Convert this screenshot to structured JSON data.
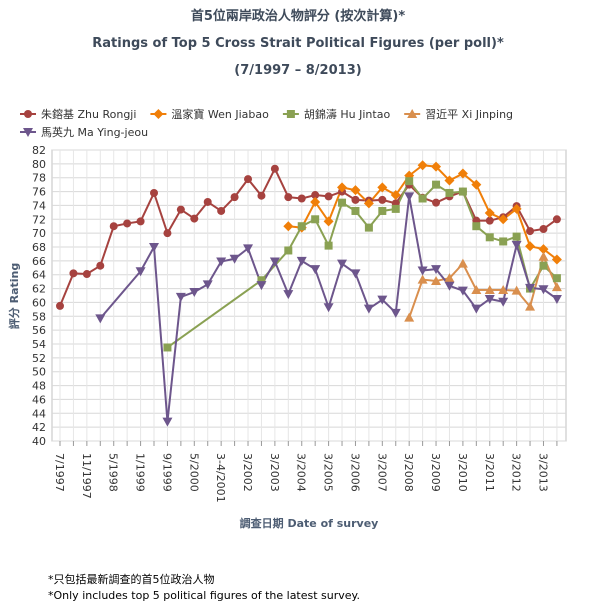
{
  "chart_data": {
    "type": "line",
    "title": "首5位兩岸政治人物評分 (按次計算)*",
    "subtitle": "Ratings of Top 5 Cross Strait Political Figures (per poll)*",
    "period": "(7/1997 – 8/2013)",
    "x_label": "調查日期 Date of survey",
    "y_label": "評分 Rating",
    "footnotes": [
      "*只包括最新調查的首5位政治人物",
      "*Only includes top 5 political figures of the latest survey."
    ],
    "categories": [
      "7/1997",
      null,
      "11/1997",
      null,
      "5/1998",
      null,
      "1/1999",
      null,
      "9/1999",
      null,
      "5/2000",
      null,
      "3-4/2001",
      null,
      "3/2002",
      null,
      "3/2003",
      null,
      "3/2004",
      null,
      "3/2005",
      null,
      "3/2006",
      null,
      "3/2007",
      null,
      "3/2008",
      null,
      "3/2009",
      null,
      "3/2010",
      null,
      "3/2011",
      null,
      "3/2012",
      null,
      "3/2013",
      null
    ],
    "ylim": [
      40,
      82
    ],
    "yticks": [
      40,
      42,
      44,
      46,
      48,
      50,
      52,
      54,
      56,
      58,
      60,
      62,
      64,
      66,
      68,
      70,
      72,
      74,
      76,
      78,
      80,
      82
    ],
    "grid": true,
    "connect_nulls": true,
    "series": [
      {
        "name": "朱鎔基 Zhu Rongji",
        "color": "#a6423f",
        "marker": "circle",
        "values": [
          59.5,
          64.2,
          64.1,
          65.3,
          71.0,
          71.4,
          71.7,
          75.8,
          70.0,
          73.4,
          72.1,
          74.5,
          73.2,
          75.2,
          77.8,
          75.4,
          79.3,
          75.2,
          75.0,
          75.5,
          75.3,
          76.0,
          74.8,
          74.7,
          74.8,
          74.3,
          77.0,
          75.1,
          74.4,
          75.3,
          76.0,
          71.8,
          71.8,
          72.3,
          73.9,
          70.3,
          70.6,
          72.0
        ]
      },
      {
        "name": "溫家寶 Wen Jiabao",
        "color": "#f07f09",
        "marker": "diamond",
        "values": [
          null,
          null,
          null,
          null,
          null,
          null,
          null,
          null,
          null,
          null,
          null,
          null,
          null,
          null,
          null,
          null,
          null,
          71.0,
          70.8,
          74.5,
          71.7,
          76.6,
          76.2,
          74.3,
          76.6,
          75.5,
          78.3,
          79.8,
          79.6,
          77.6,
          78.6,
          77.0,
          72.9,
          72.0,
          73.5,
          68.1,
          67.7,
          66.2
        ]
      },
      {
        "name": "胡錦濤 Hu Jintao",
        "color": "#8aa153",
        "marker": "square",
        "values": [
          null,
          null,
          null,
          null,
          null,
          null,
          null,
          null,
          53.5,
          null,
          null,
          null,
          null,
          null,
          null,
          63.2,
          null,
          67.5,
          71.0,
          72.0,
          68.2,
          74.4,
          73.2,
          70.8,
          73.2,
          73.5,
          77.5,
          75.0,
          77.0,
          75.8,
          76.0,
          71.0,
          69.4,
          68.8,
          69.5,
          62.0,
          65.3,
          63.5
        ]
      },
      {
        "name": "習近平 Xi Jinping",
        "color": "#d98f4e",
        "marker": "triangle",
        "values": [
          null,
          null,
          null,
          null,
          null,
          null,
          null,
          null,
          null,
          null,
          null,
          null,
          null,
          null,
          null,
          null,
          null,
          null,
          null,
          null,
          null,
          null,
          null,
          null,
          null,
          null,
          57.8,
          63.3,
          63.1,
          63.5,
          65.6,
          61.8,
          61.8,
          61.8,
          61.7,
          59.4,
          66.6,
          62.2
        ]
      },
      {
        "name": "馬英九 Ma Ying-jeou",
        "color": "#6d568c",
        "marker": "triangle-down",
        "values": [
          null,
          null,
          null,
          57.7,
          null,
          null,
          64.5,
          68.0,
          42.8,
          60.8,
          61.5,
          62.6,
          65.9,
          66.3,
          67.8,
          62.5,
          65.9,
          61.2,
          66.0,
          64.8,
          59.3,
          65.6,
          64.2,
          59.1,
          60.4,
          58.5,
          75.3,
          64.6,
          64.8,
          62.4,
          61.7,
          59.1,
          60.5,
          60.1,
          68.3,
          62.1,
          61.9,
          60.5
        ]
      }
    ]
  }
}
